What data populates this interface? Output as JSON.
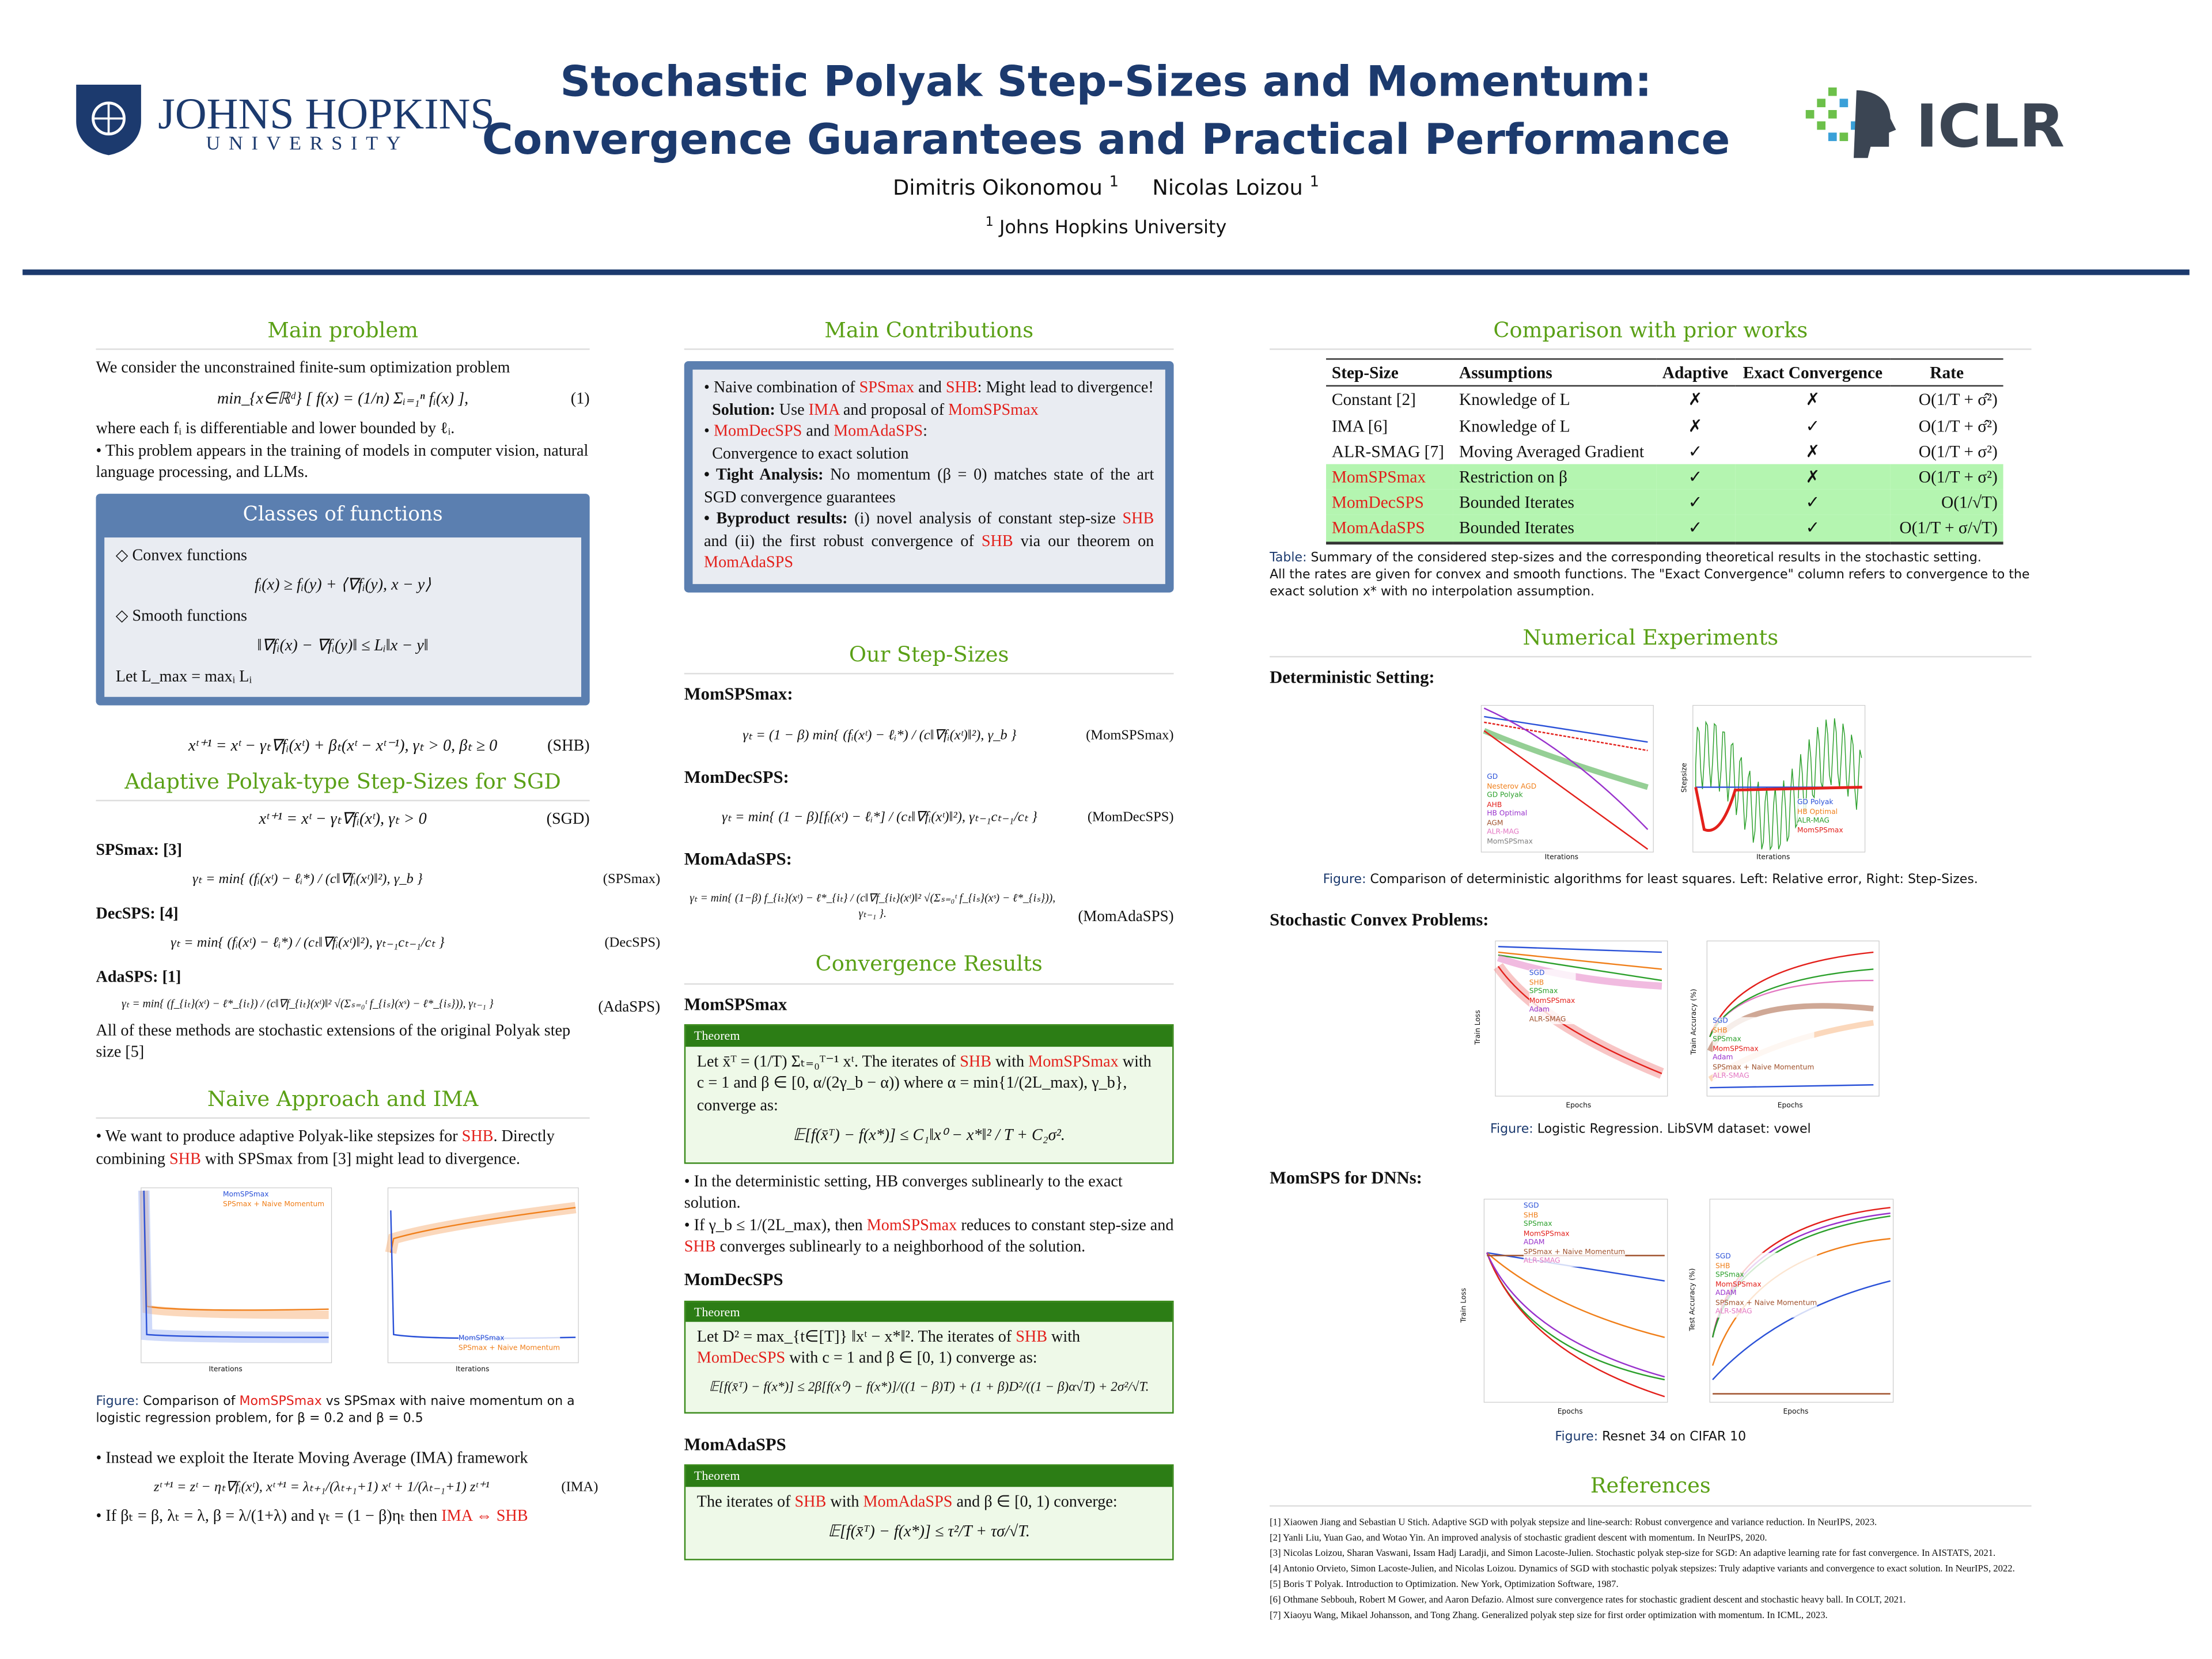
{
  "header": {
    "title_line1": "Stochastic Polyak Step-Sizes and Momentum:",
    "title_line2": "Convergence Guarantees and Practical Performance",
    "author1": "Dimitris Oikonomou",
    "author2": "Nicolas Loizou",
    "author_sup": "1",
    "affiliation": "Johns Hopkins University",
    "jhu_logo_text1": "JOHNS HOPKINS",
    "jhu_logo_text2": "UNIVERSITY",
    "iclr_logo_text": "ICLR"
  },
  "colors": {
    "title": "#1c3a6e",
    "section": "#5aa016",
    "highlight": "#e3201b",
    "table_highlight": "#b4f5b0"
  },
  "col1": {
    "main_problem": {
      "title": "Main problem",
      "intro": "We consider the unconstrained finite-sum optimization problem",
      "eq": "min_{x∈ℝᵈ} [ f(x) = (1/n) Σᵢ₌₁ⁿ fᵢ(x) ],",
      "eq_tag": "(1)",
      "after": "where each fᵢ is differentiable and lower bounded by ℓᵢ.",
      "bullet": "• This problem appears in the training of models in computer vision, natural language processing, and LLMs."
    },
    "classes": {
      "title": "Classes of functions",
      "convex": "◇ Convex functions",
      "convex_eq": "fᵢ(x) ≥ fᵢ(y) + ⟨∇fᵢ(y), x − y⟩",
      "smooth": "◇ Smooth functions",
      "smooth_eq": "‖∇fᵢ(x) − ∇fᵢ(y)‖ ≤ Lᵢ‖x − y‖",
      "lmax": "Let L_max = maxᵢ Lᵢ"
    },
    "shb_eq": "xᵗ⁺¹ = xᵗ − γₜ∇fᵢ(xᵗ) + βₜ(xᵗ − xᵗ⁻¹), γₜ > 0, βₜ ≥ 0",
    "shb_tag": "(SHB)",
    "adaptive": {
      "title": "Adaptive Polyak-type Step-Sizes for SGD",
      "sgd_eq": "xᵗ⁺¹ = xᵗ − γₜ∇fᵢ(xᵗ), γₜ > 0",
      "sgd_tag": "(SGD)",
      "spsmax_label": "SPSmax: [3]",
      "spsmax_eq": "γₜ = min{ (fᵢ(xᵗ) − ℓᵢ*) / (c‖∇fᵢ(xᵗ)‖²), γ_b }",
      "spsmax_tag": "(SPSmax)",
      "decsps_label": "DecSPS: [4]",
      "decsps_eq": "γₜ = min{ (fᵢ(xᵗ) − ℓᵢ*) / (cₜ‖∇fᵢ(xᵗ)‖²), γₜ₋₁cₜ₋₁/cₜ }",
      "decsps_tag": "(DecSPS)",
      "adasps_label": "AdaSPS: [1]",
      "adasps_eq": "γₜ = min{ (f_{iₜ}(xᵗ) − ℓ*_{iₜ}) / (c‖∇f_{iₜ}(xᵗ)‖² √(Σₛ₌₀ᵗ f_{iₛ}(xˢ) − ℓ*_{iₛ})), γₜ₋₁ }",
      "adasps_tag": "(AdaSPS)",
      "outro": "All of these methods are stochastic extensions of the original Polyak step size [5]"
    },
    "naive": {
      "title": "Naive Approach and IMA",
      "p1a": "• We want to produce adaptive Polyak-like stepsizes for ",
      "p1b": "SHB",
      "p1c": ". Directly combining ",
      "p1d": "SHB",
      "p1e": " with SPSmax from [3] might lead to divergence.",
      "legend_left": [
        "MomSPSmax",
        "SPSmax + Naive Momentum"
      ],
      "legend_right": [
        "MomSPSmax",
        "SPSmax + Naive Momentum"
      ],
      "xlabel": "Iterations",
      "cap_lbl": "Figure:",
      "cap_a": " Comparison of ",
      "cap_b": "MomSPSmax",
      "cap_c": " vs SPSmax with naive momentum on a logistic regression problem, for β = 0.2 and β = 0.5",
      "p2": "• Instead we exploit the Iterate Moving Average (IMA) framework",
      "ima_eq": "zᵗ⁺¹ = zᵗ − ηₜ∇fᵢ(xᵗ),   xᵗ⁺¹ = λₜ₊₁/(λₜ₊₁+1) xᵗ + 1/(λₜ₋₁+1) zᵗ⁺¹",
      "ima_tag": "(IMA)",
      "p3a": "• If βₜ = β, λₜ = λ, β = λ/(1+λ) and γₜ = (1 − β)ηₜ then ",
      "p3b": "IMA ⇔ SHB"
    }
  },
  "col2": {
    "contrib": {
      "title": "Main Contributions",
      "b1a": "• Naive combination of ",
      "b1b": "SPSmax",
      "b1c": " and ",
      "b1d": "SHB",
      "b1e": ": Might lead to divergence!",
      "b1f": "Solution:",
      "b1g": " Use ",
      "b1h": "IMA",
      "b1i": " and proposal of ",
      "b1j": "MomSPSmax",
      "b2a": "• ",
      "b2b": "MomDecSPS",
      "b2c": " and ",
      "b2d": "MomAdaSPS",
      "b2e": ":",
      "b2f": "Convergence to exact solution",
      "b3a": "• Tight Analysis:",
      "b3b": " No momentum (β = 0) matches state of the art SGD convergence guarantees",
      "b4a": "• Byproduct results:",
      "b4b": " (i) novel analysis of constant step-size ",
      "b4c": "SHB",
      "b4d": " and (ii) the first robust convergence of ",
      "b4e": "SHB",
      "b4f": " via our theorem on ",
      "b4g": "MomAdaSPS"
    },
    "stepsizes": {
      "title": "Our Step-Sizes",
      "m1": "MomSPSmax:",
      "m1_eq": "γₜ = (1 − β) min{ (fᵢ(xᵗ) − ℓᵢ*) / (c‖∇fᵢ(xᵗ)‖²), γ_b }",
      "m1_tag": "(MomSPSmax)",
      "m2": "MomDecSPS:",
      "m2_eq": "γₜ = min{ (1 − β)[fᵢ(xᵗ) − ℓᵢ*] / (cₜ‖∇fᵢ(xᵗ)‖²), γₜ₋₁cₜ₋₁/cₜ }",
      "m2_tag": "(MomDecSPS)",
      "m3": "MomAdaSPS:",
      "m3_eq": "γₜ = min{ (1−β) f_{iₜ}(xᵗ) − ℓ*_{iₜ} / (c‖∇f_{iₜ}(xᵗ)‖² √(Σₛ₌₀ᵗ f_{iₛ}(xˢ) − ℓ*_{iₛ})), γₜ₋₁ }.",
      "m3_tag": "(MomAdaSPS)"
    },
    "conv": {
      "title": "Convergence Results",
      "s1": "MomSPSmax",
      "thm_label": "Theorem",
      "t1a": "Let x̄ᵀ = (1/T) Σₜ₌₀ᵀ⁻¹ xᵗ. The iterates of ",
      "t1b": "SHB",
      "t1c": " with ",
      "t1d": "MomSPSmax",
      "t1e": " with c = 1 and β ∈ [0, α/(2γ_b − α)) where α = min{1/(2L_max), γ_b}, converge as:",
      "t1_eq": "𝔼[f(x̄ᵀ) − f(x*)] ≤ C₁‖x⁰ − x*‖² / T + C₂σ².",
      "p1": "• In the deterministic setting, HB converges sublinearly to the exact solution.",
      "p2a": "• If γ_b ≤ 1/(2L_max), then ",
      "p2b": "MomSPSmax",
      "p2c": " reduces to constant step-size and ",
      "p2d": "SHB",
      "p2e": " converges sublinearly to a neighborhood of the solution.",
      "s2": "MomDecSPS",
      "t2a": "Let D² = max_{t∈[T]} ‖xᵗ − x*‖². The iterates of ",
      "t2b": "SHB",
      "t2c": " with ",
      "t2d": "MomDecSPS",
      "t2e": " with c = 1 and β ∈ [0, 1) converge as:",
      "t2_eq": "𝔼[f(x̄ᵀ) − f(x*)] ≤ 2β[f(x⁰) − f(x*)]/((1 − β)T) + (1 + β)D²/((1 − β)α√T) + 2σ²/√T.",
      "s3": "MomAdaSPS",
      "t3a": "The iterates of ",
      "t3b": "SHB",
      "t3c": " with ",
      "t3d": "MomAdaSPS",
      "t3e": " and β ∈ [0, 1) converge:",
      "t3_eq": "𝔼[f(x̄ᵀ) − f(x*)] ≤ τ²/T + τσ/√T."
    }
  },
  "col3": {
    "comparison": {
      "title": "Comparison with prior works",
      "headers": [
        "Step-Size",
        "Assumptions",
        "Adaptive",
        "Exact Convergence",
        "Rate"
      ],
      "rows": [
        {
          "name": "Constant [2]",
          "assump": "Knowledge of L",
          "adaptive": "✗",
          "exact": "✗",
          "rate": "O(1/T + σ̂²)",
          "ours": false
        },
        {
          "name": "IMA [6]",
          "assump": "Knowledge of L",
          "adaptive": "✗",
          "exact": "✓",
          "rate": "O(1/T + σ̂²)",
          "ours": false
        },
        {
          "name": "ALR-SMAG [7]",
          "assump": "Moving Averaged Gradient",
          "adaptive": "✓",
          "exact": "✗",
          "rate": "O(1/T + σ²)",
          "ours": false
        },
        {
          "name": "MomSPSmax",
          "assump": "Restriction on β",
          "adaptive": "✓",
          "exact": "✗",
          "rate": "O(1/T + σ²)",
          "ours": true
        },
        {
          "name": "MomDecSPS",
          "assump": "Bounded Iterates",
          "adaptive": "✓",
          "exact": "✓",
          "rate": "O(1/√T)",
          "ours": true
        },
        {
          "name": "MomAdaSPS",
          "assump": "Bounded Iterates",
          "adaptive": "✓",
          "exact": "✓",
          "rate": "O(1/T + σ/√T)",
          "ours": true
        }
      ],
      "cap_lbl": "Table:",
      "cap1": " Summary of the considered step-sizes and the corresponding theoretical results in the stochastic setting.",
      "cap2": "All the rates are given for convex and smooth functions. The \"Exact Convergence\" column refers to convergence to the exact solution x* with no interpolation assumption."
    },
    "experiments": {
      "title": "Numerical Experiments",
      "det": {
        "title": "Deterministic Setting:",
        "legend_left": [
          "GD",
          "Nesterov AGD",
          "GD Polyak",
          "AHB",
          "HB Optimal",
          "AGM",
          "ALR-MAG",
          "MomSPSmax"
        ],
        "legend_right": [
          "GD Polyak",
          "HB Optimal",
          "ALR-MAG",
          "MomSPSmax"
        ],
        "xlabel": "Iterations",
        "ylabel_right": "Stepsize",
        "cap_lbl": "Figure:",
        "cap": " Comparison of deterministic algorithms for least squares. Left: Relative error, Right: Step-Sizes."
      },
      "sto": {
        "title": "Stochastic Convex Problems:",
        "legend_left": [
          "SGD",
          "SHB",
          "SPSmax",
          "MomSPSmax",
          "Adam",
          "ALR-SMAG"
        ],
        "legend_right": [
          "SGD",
          "SHB",
          "SPSmax",
          "MomSPSmax",
          "Adam",
          "SPSmax + Naive Momentum",
          "ALR-SMAG"
        ],
        "xlabel": "Epochs",
        "ylabel_left": "Train Loss",
        "ylabel_right": "Train Accuracy (%)",
        "cap_lbl": "Figure:",
        "cap": " Logistic Regression. LibSVM dataset: vowel"
      },
      "dnn": {
        "title": "MomSPS for DNNs:",
        "legend_left": [
          "SGD",
          "SHB",
          "SPSmax",
          "MomSPSmax",
          "ADAM",
          "SPSmax + Naive Momentum",
          "ALR-SMAG"
        ],
        "legend_right": [
          "SGD",
          "SHB",
          "SPSmax",
          "MomSPSmax",
          "ADAM",
          "SPSmax + Naive Momentum",
          "ALR-SMAG"
        ],
        "xlabel": "Epochs",
        "ylabel_left": "Train Loss",
        "ylabel_right": "Test Accuracy (%)",
        "cap_lbl": "Figure:",
        "cap": " Resnet 34 on CIFAR 10"
      }
    },
    "references": {
      "title": "References",
      "items": [
        "[1] Xiaowen Jiang and Sebastian U Stich. Adaptive SGD with polyak stepsize and line-search: Robust convergence and variance reduction. In NeurIPS, 2023.",
        "[2] Yanli Liu, Yuan Gao, and Wotao Yin. An improved analysis of stochastic gradient descent with momentum. In NeurIPS, 2020.",
        "[3] Nicolas Loizou, Sharan Vaswani, Issam Hadj Laradji, and Simon Lacoste-Julien. Stochastic polyak step-size for SGD: An adaptive learning rate for fast convergence. In AISTATS, 2021.",
        "[4] Antonio Orvieto, Simon Lacoste-Julien, and Nicolas Loizou. Dynamics of SGD with stochastic polyak stepsizes: Truly adaptive variants and convergence to exact solution. In NeurIPS, 2022.",
        "[5] Boris T Polyak. Introduction to Optimization. New York, Optimization Software, 1987.",
        "[6] Othmane Sebbouh, Robert M Gower, and Aaron Defazio. Almost sure convergence rates for stochastic gradient descent and stochastic heavy ball. In COLT, 2021.",
        "[7] Xiaoyu Wang, Mikael Johansson, and Tong Zhang. Generalized polyak step size for first order optimization with momentum. In ICML, 2023."
      ]
    }
  }
}
